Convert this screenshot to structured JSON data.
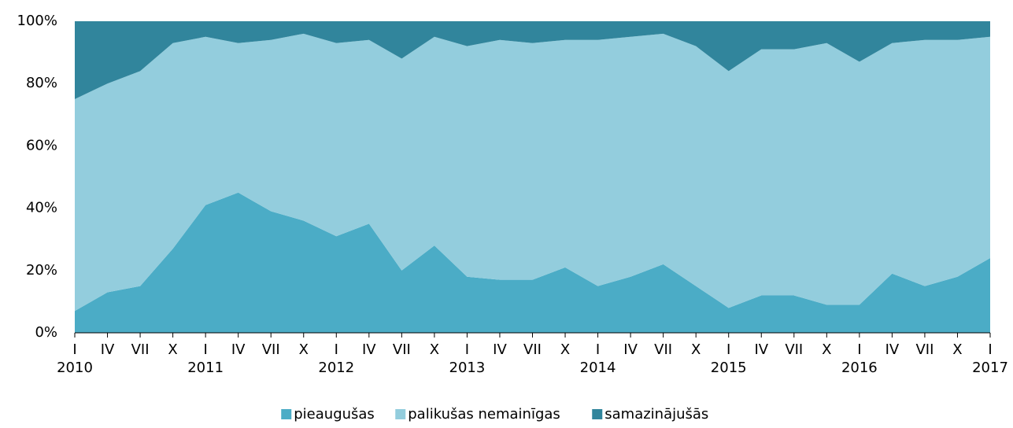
{
  "chart_data": {
    "type": "stacked_area",
    "categories": [
      "I",
      "IV",
      "VII",
      "X",
      "I",
      "IV",
      "VII",
      "X",
      "I",
      "IV",
      "VII",
      "X",
      "I",
      "IV",
      "VII",
      "X",
      "I",
      "IV",
      "VII",
      "X",
      "I",
      "IV",
      "VII",
      "X",
      "I",
      "IV",
      "VII",
      "X",
      "I"
    ],
    "category_years": [
      "2010",
      null,
      null,
      null,
      "2011",
      null,
      null,
      null,
      "2012",
      null,
      null,
      null,
      "2013",
      null,
      null,
      null,
      "2014",
      null,
      null,
      null,
      "2015",
      null,
      null,
      null,
      "2016",
      null,
      null,
      null,
      "2017"
    ],
    "series": [
      {
        "name": "pieaugušas",
        "color": "#4bacc6",
        "values": [
          7,
          13,
          15,
          27,
          41,
          45,
          39,
          36,
          31,
          35,
          20,
          28,
          18,
          17,
          17,
          21,
          15,
          18,
          22,
          15,
          8,
          12,
          12,
          9,
          9,
          19,
          15,
          18,
          24
        ]
      },
      {
        "name": "palikušas nemainīgas",
        "color": "#93cddd",
        "values": [
          68,
          67,
          69,
          66,
          54,
          48,
          55,
          60,
          62,
          59,
          68,
          67,
          74,
          77,
          76,
          73,
          79,
          77,
          74,
          77,
          76,
          79,
          79,
          84,
          78,
          74,
          79,
          76,
          71
        ]
      },
      {
        "name": "samazinājušās",
        "color": "#31859c",
        "values": [
          25,
          20,
          16,
          7,
          5,
          7,
          6,
          4,
          7,
          6,
          12,
          5,
          8,
          6,
          7,
          6,
          6,
          5,
          4,
          8,
          16,
          9,
          9,
          7,
          13,
          7,
          6,
          6,
          5
        ]
      }
    ],
    "ylim": [
      0,
      100
    ],
    "yticks": [
      {
        "value": 0,
        "label": "0%"
      },
      {
        "value": 20,
        "label": "20%"
      },
      {
        "value": 40,
        "label": "40%"
      },
      {
        "value": 60,
        "label": "60%"
      },
      {
        "value": 80,
        "label": "80%"
      },
      {
        "value": 100,
        "label": "100%"
      }
    ],
    "grid": false
  }
}
